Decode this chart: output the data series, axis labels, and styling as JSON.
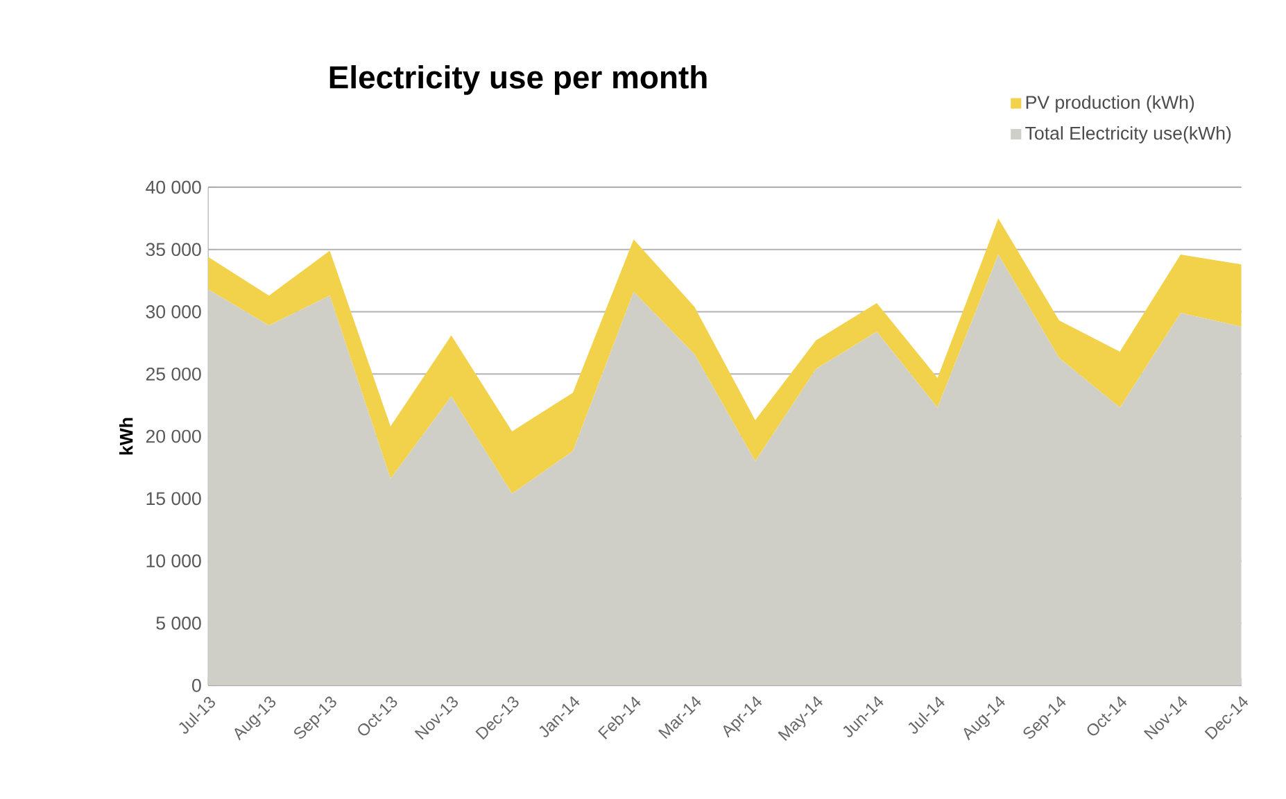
{
  "chart_data": {
    "type": "area",
    "title": "Electricity use per month",
    "ylabel": "kWh",
    "stacked": true,
    "categories": [
      "Jul-13",
      "Aug-13",
      "Sep-13",
      "Oct-13",
      "Nov-13",
      "Dec-13",
      "Jan-14",
      "Feb-14",
      "Mar-14",
      "Apr-14",
      "May-14",
      "Jun-14",
      "Jul-14",
      "Aug-14",
      "Sep-14",
      "Oct-14",
      "Nov-14",
      "Dec-14"
    ],
    "series": [
      {
        "name": "Total Electricity use(kWh)",
        "color": "#cfcfc8",
        "values": [
          31800,
          28900,
          31300,
          16600,
          23200,
          15400,
          18800,
          31600,
          26600,
          18000,
          25400,
          28400,
          22300,
          34600,
          26300,
          22300,
          29900,
          28800
        ]
      },
      {
        "name": "PV production (kWh)",
        "color": "#f2d24b",
        "values": [
          2600,
          2400,
          3600,
          4200,
          4900,
          5000,
          4700,
          4200,
          3800,
          3300,
          2300,
          2300,
          2400,
          2900,
          3000,
          4500,
          4700,
          5000
        ]
      }
    ],
    "ylim": [
      0,
      40000
    ],
    "yticks": [
      {
        "value": 0,
        "label": "0"
      },
      {
        "value": 5000,
        "label": "5 000"
      },
      {
        "value": 10000,
        "label": "10 000"
      },
      {
        "value": 15000,
        "label": "15 000"
      },
      {
        "value": 20000,
        "label": "20 000"
      },
      {
        "value": 25000,
        "label": "25 000"
      },
      {
        "value": 30000,
        "label": "30 000"
      },
      {
        "value": 35000,
        "label": "35 000"
      },
      {
        "value": 40000,
        "label": "40 000"
      }
    ],
    "grid": "y",
    "legend": "top right"
  }
}
